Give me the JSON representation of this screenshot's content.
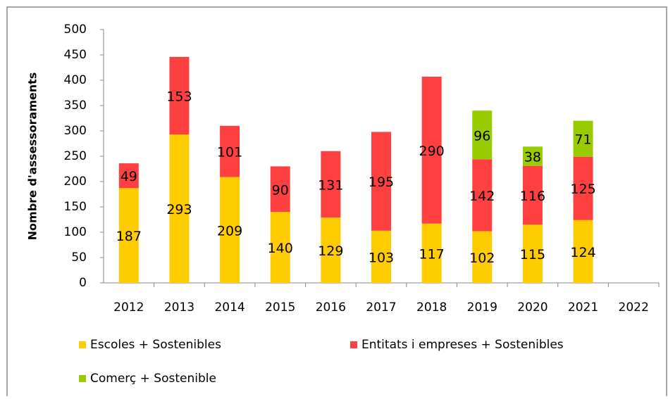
{
  "chart_data": {
    "type": "stacked_bar",
    "y_label": "Nombre d'assessoraments",
    "categories": [
      "2012",
      "2013",
      "2014",
      "2015",
      "2016",
      "2017",
      "2018",
      "2019",
      "2020",
      "2021",
      "2022"
    ],
    "series": [
      {
        "name": "Escoles + Sostenibles",
        "color": "#ffcc00",
        "values": [
          187,
          293,
          209,
          140,
          129,
          103,
          117,
          102,
          115,
          124,
          null
        ]
      },
      {
        "name": "Entitats i empreses + Sostenibles",
        "color": "#ff4040",
        "values": [
          49,
          153,
          101,
          90,
          131,
          195,
          290,
          142,
          116,
          125,
          null
        ]
      },
      {
        "name": "Comerç + Sostenible",
        "color": "#99cc00",
        "values": [
          null,
          null,
          null,
          null,
          null,
          null,
          null,
          96,
          38,
          71,
          null
        ]
      }
    ],
    "ylim": [
      0,
      500
    ],
    "yticks": [
      0,
      50,
      100,
      150,
      200,
      250,
      300,
      350,
      400,
      450,
      500
    ],
    "legend": "bottom"
  }
}
